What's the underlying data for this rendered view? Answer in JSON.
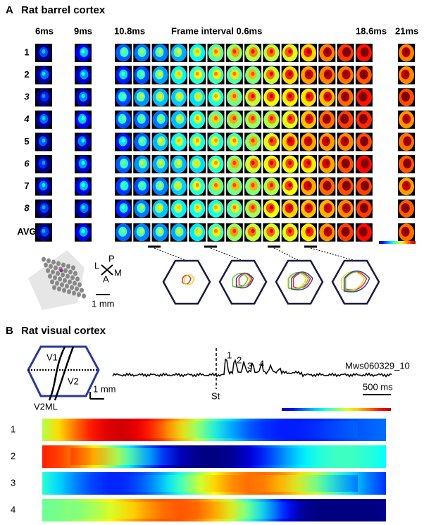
{
  "panel_a": {
    "letter": "A",
    "title": "Rat barrel cortex",
    "time_labels": [
      "6ms",
      "9ms",
      "10.8ms",
      "Frame interval 0.6ms",
      "18.6ms",
      "21ms"
    ],
    "rows": [
      {
        "label": "1",
        "color": "#000000",
        "italic": false
      },
      {
        "label": "2",
        "color": "#000000",
        "italic": false
      },
      {
        "label": "3",
        "color": "#d8302a",
        "italic": true
      },
      {
        "label": "4",
        "color": "#e8d52a",
        "italic": true
      },
      {
        "label": "5",
        "color": "#000000",
        "italic": false
      },
      {
        "label": "6",
        "color": "#6cc43a",
        "italic": true
      },
      {
        "label": "7",
        "color": "#000000",
        "italic": false
      },
      {
        "label": "8",
        "color": "#3a3fa0",
        "italic": true
      },
      {
        "label": "AVG",
        "color": "#000000",
        "italic": false
      }
    ],
    "orientation": {
      "left": "L",
      "posterior": "P",
      "anterior": "A",
      "medial": "M"
    },
    "scale_bar": "1 mm"
  },
  "panel_b": {
    "letter": "B",
    "title": "Rat visual cortex",
    "map_labels": [
      "V1",
      "V2",
      "V2ML"
    ],
    "scale_bar": "1 mm",
    "peak_labels": [
      "1",
      "2",
      "3",
      "4"
    ],
    "stimulus": "St",
    "recording_id": "Mws060329_10",
    "time_scale": "500 ms",
    "rows": [
      "1",
      "2",
      "3",
      "4"
    ]
  }
}
